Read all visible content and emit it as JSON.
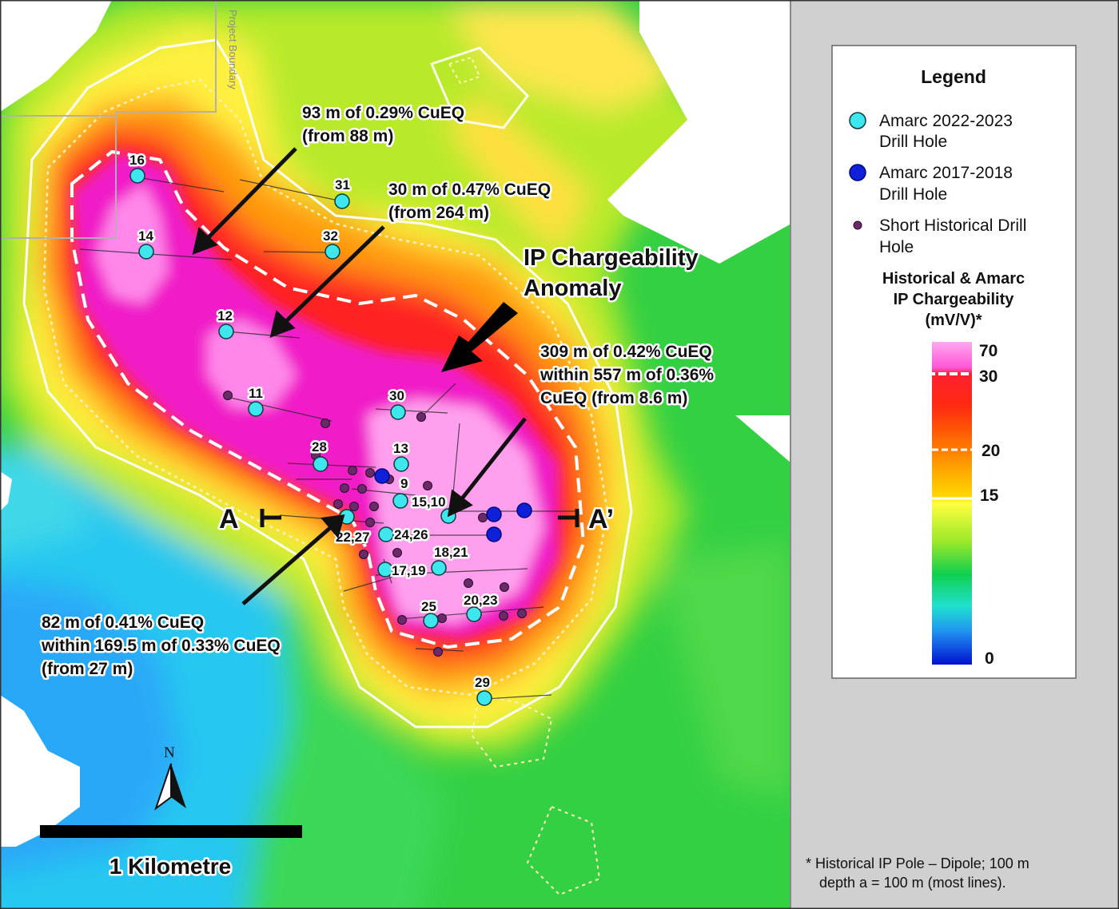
{
  "annotations": {
    "a1_line1": "93 m of 0.29% CuEQ",
    "a1_line2": "(from 88 m)",
    "a2_line1": "30 m of 0.47% CuEQ",
    "a2_line2": "(from 264 m)",
    "a3_line1": "309 m of 0.42% CuEQ",
    "a3_line2": "within 557 m of 0.36%",
    "a3_line3": "CuEQ (from 8.6 m)",
    "a4_line1": "82 m of 0.41% CuEQ",
    "a4_line2": "within 169.5 m of 0.33% CuEQ",
    "a4_line3": "(from 27 m)"
  },
  "anomaly": {
    "line1": "IP Chargeability",
    "line2": "Anomaly"
  },
  "section": {
    "start": "A",
    "end": "A’"
  },
  "boundary_label": "Project Boundary",
  "north_label": "N",
  "scale_label": "1 Kilometre",
  "holes": [
    {
      "label": "16"
    },
    {
      "label": "31"
    },
    {
      "label": "14"
    },
    {
      "label": "32"
    },
    {
      "label": "12"
    },
    {
      "label": "11"
    },
    {
      "label": "30"
    },
    {
      "label": "28"
    },
    {
      "label": "13"
    },
    {
      "label": "9"
    },
    {
      "label": "15,10"
    },
    {
      "label": "22,27"
    },
    {
      "label": "24,26"
    },
    {
      "label": "18,21"
    },
    {
      "label": "17,19"
    },
    {
      "label": "25"
    },
    {
      "label": "20,23"
    },
    {
      "label": "29"
    }
  ],
  "legend": {
    "title": "Legend",
    "item1_line1": "Amarc 2022-2023",
    "item1_line2": "Drill Hole",
    "item2_line1": "Amarc 2017-2018",
    "item2_line2": "Drill Hole",
    "item3_line1": "Short Historical Drill",
    "item3_line2": "Hole",
    "sub_line1": "Historical & Amarc",
    "sub_line2": "IP Chargeability",
    "sub_line3": "(mV/V)*",
    "ticks": [
      "70",
      "30",
      "20",
      "15",
      "0"
    ]
  },
  "footnote": {
    "line1": "* Historical IP Pole – Dipole; 100 m",
    "line2": "depth a = 100 m (most lines)."
  },
  "colors": {
    "cyan_hole": "#3ee6ee",
    "blue_hole": "#1020d8",
    "historic_hole": "#6a2a6a",
    "panel_bg": "#d0d0d0"
  }
}
